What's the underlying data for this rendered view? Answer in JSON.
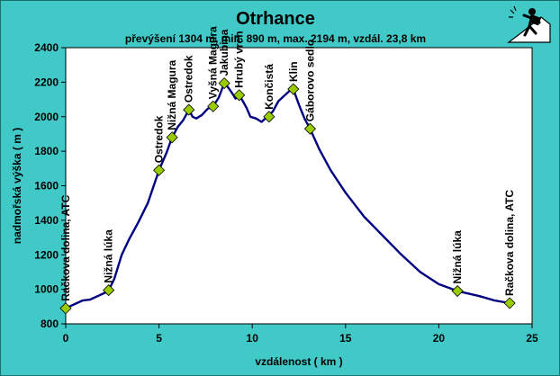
{
  "chart_data": {
    "type": "line",
    "title": "Otrhance",
    "subtitle": "převýšení 1304 m, min. 890 m, max. 2194 m, vzdál. 23,8 km",
    "xlabel": "vzdálenost ( km )",
    "ylabel": "nadmořská výška ( m )",
    "xlim": [
      0,
      25
    ],
    "ylim": [
      800,
      2400
    ],
    "xticks": [
      "0",
      "5",
      "10",
      "15",
      "20",
      "25"
    ],
    "yticks": [
      "800",
      "1000",
      "1200",
      "1400",
      "1600",
      "1800",
      "2000",
      "2200",
      "2400"
    ],
    "grid": false,
    "colors": {
      "background": "#40c9c7",
      "plot_area": "#ffffff",
      "line": "#000080",
      "marker": "#99cc00"
    },
    "series": [
      {
        "x": [
          0,
          0.5,
          0.9,
          1.3,
          1.7,
          2.1,
          2.3,
          2.6,
          3.0,
          3.4,
          3.9,
          4.4,
          5.0,
          5.4,
          5.7,
          6.0,
          6.3,
          6.6,
          6.8,
          7.0,
          7.3,
          7.6,
          7.9,
          8.2,
          8.5,
          8.7,
          8.9,
          9.1,
          9.3,
          9.5,
          9.7,
          9.9,
          10.2,
          10.5,
          10.8,
          11.1,
          11.4,
          11.7,
          12.0,
          12.2,
          12.5,
          12.8,
          13.1,
          13.6,
          14.2,
          15.0,
          16.0,
          17.0,
          18.0,
          19.0,
          20.0,
          21.0,
          21.6,
          22.2,
          23.0,
          23.8
        ],
        "y": [
          890,
          915,
          935,
          940,
          960,
          980,
          995,
          1060,
          1200,
          1290,
          1390,
          1500,
          1690,
          1790,
          1880,
          1940,
          1980,
          2040,
          2000,
          1990,
          2010,
          2045,
          2060,
          2110,
          2194,
          2170,
          2140,
          2105,
          2125,
          2090,
          2050,
          2000,
          1990,
          1970,
          2000,
          2030,
          2090,
          2120,
          2150,
          2160,
          2070,
          1990,
          1930,
          1810,
          1690,
          1560,
          1420,
          1310,
          1200,
          1100,
          1030,
          990,
          975,
          960,
          935,
          920
        ]
      }
    ],
    "annotations": [
      {
        "label": "Račkova dolina, ATC",
        "x": 0,
        "y": 890
      },
      {
        "label": "Nižná lúka",
        "x": 2.3,
        "y": 995
      },
      {
        "label": "Ostredok",
        "x": 5.0,
        "y": 1690
      },
      {
        "label": "Nižná Magura",
        "x": 5.7,
        "y": 1880
      },
      {
        "label": "Ostredok",
        "x": 6.6,
        "y": 2040
      },
      {
        "label": "Vyšná Magura",
        "x": 7.9,
        "y": 2060
      },
      {
        "label": "Jakubina",
        "x": 8.5,
        "y": 2194
      },
      {
        "label": "Hrubý vrch",
        "x": 9.3,
        "y": 2125
      },
      {
        "label": "Končistá",
        "x": 10.9,
        "y": 2000
      },
      {
        "label": "Klin",
        "x": 12.2,
        "y": 2160
      },
      {
        "label": "Gáborovo sedlo",
        "x": 13.1,
        "y": 1930
      },
      {
        "label": "Nižná lúka",
        "x": 21.0,
        "y": 990
      },
      {
        "label": "Račkova dolina, ATC",
        "x": 23.8,
        "y": 920
      }
    ]
  }
}
